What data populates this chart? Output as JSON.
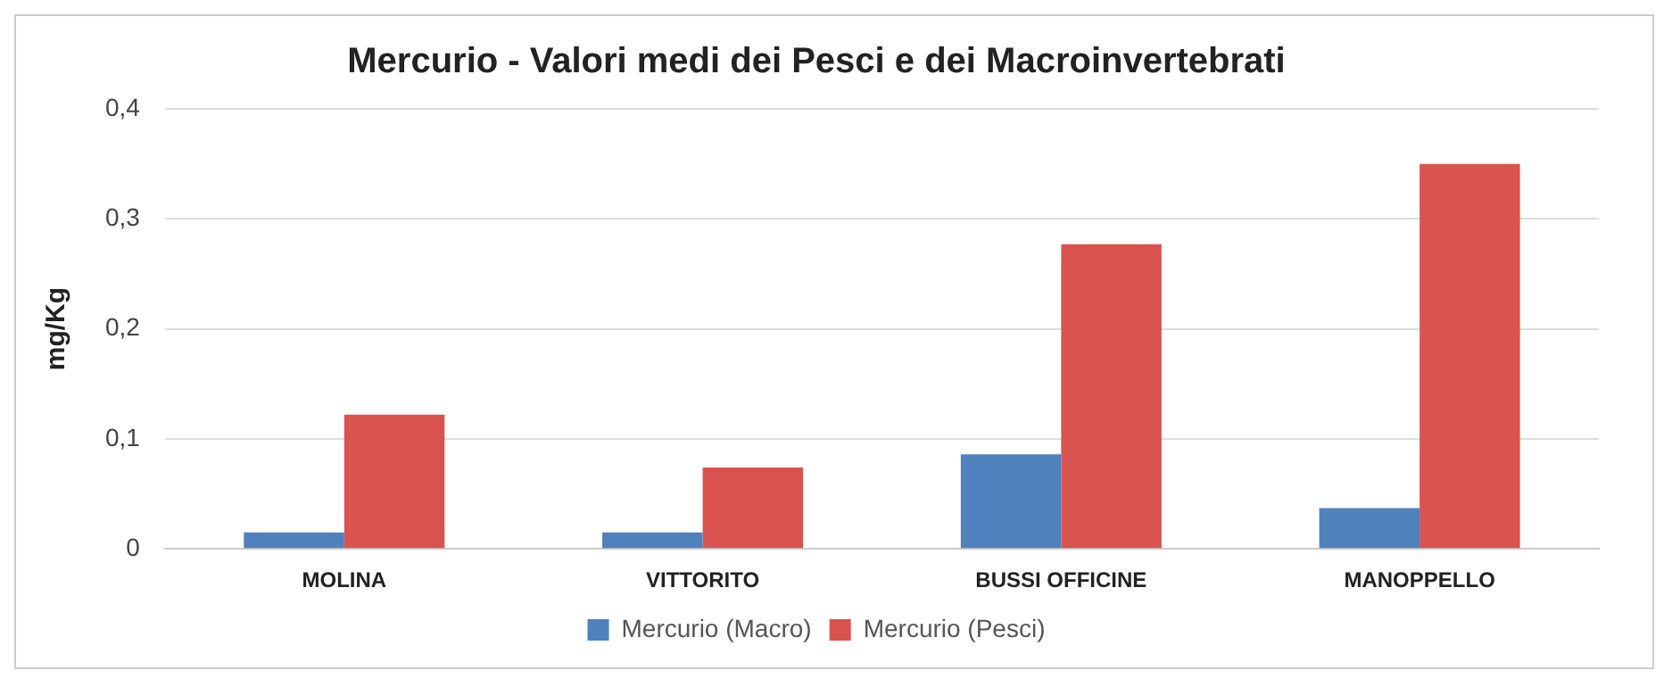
{
  "chart_data": {
    "type": "bar",
    "title": "Mercurio - Valori medi dei Pesci e dei Macroinvertebrati",
    "ylabel": "mg/Kg",
    "categories": [
      "MOLINA",
      "VITTORITO",
      "BUSSI OFFICINE",
      "MANOPPELLO"
    ],
    "series": [
      {
        "name": "Mercurio (Macro)",
        "color": "#4f81bd",
        "values": [
          0.015,
          0.015,
          0.086,
          0.037
        ]
      },
      {
        "name": "Mercurio (Pesci)",
        "color": "#d9534f",
        "values": [
          0.122,
          0.074,
          0.277,
          0.35
        ]
      }
    ],
    "ylim": [
      0,
      0.4
    ],
    "yticks": [
      0,
      {
        "value": 0.1,
        "label": "0,1"
      },
      {
        "value": 0.2,
        "label": "0,2"
      },
      {
        "value": 0.3,
        "label": "0,3"
      },
      {
        "value": 0.4,
        "label": "0,4"
      }
    ],
    "grid": "y",
    "legend": "bottom"
  }
}
